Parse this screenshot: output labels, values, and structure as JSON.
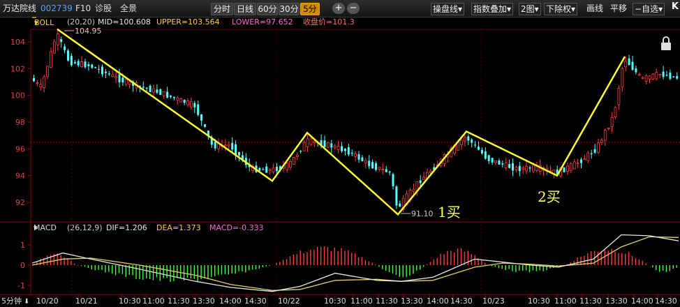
{
  "toolbar": {
    "stock_name": "万达院线",
    "stock_code": "002739",
    "f10": "F10",
    "diagnose": "诊股",
    "full_view": "全景",
    "periods": [
      "分时",
      "日线",
      "60分",
      "30分",
      "5分"
    ],
    "active_period": "5分",
    "zoom_in": "+",
    "zoom_out": "−",
    "menus": [
      "操盘线",
      "指数叠加",
      "2图",
      "下除权",
      "画线",
      "平移",
      "自选"
    ],
    "logo": "K"
  },
  "boll": {
    "name": "BOLL",
    "params": "(20,20)",
    "mid": "MID=100.608",
    "upper": "UPPER=103.564",
    "lower": "LOWER=97.652",
    "close": "收盘价=101.3"
  },
  "macd": {
    "name": "MACD",
    "params": "(26,12,9)",
    "dif": "DIF=1.206",
    "dea": "DEA=1.373",
    "macd": "MACD=-0.333"
  },
  "price_axis": {
    "ticks": [
      "104",
      "102",
      "100",
      "98",
      "96",
      "94",
      "92"
    ]
  },
  "macd_axis": {
    "ticks": [
      "1",
      "0",
      "-1"
    ]
  },
  "time_axis": {
    "period_label": "5分钟",
    "labels": [
      "10/20",
      "10/21",
      "10:30",
      "11:00",
      "11:30",
      "13:30",
      "14:00",
      "14:30",
      "10/22",
      "10:30",
      "11:00",
      "11:30",
      "13:30",
      "14:00",
      "14:30",
      "10/23",
      "10:30",
      "11:00",
      "11:30",
      "13:30",
      "14:00",
      "14:30"
    ]
  },
  "annotations": {
    "high_price": "104.95",
    "low_price": "91.10",
    "buy1": "1买",
    "buy2": "2买"
  },
  "colors": {
    "up": "#ff3b3b",
    "down": "#54ffff",
    "trend_line": "#ffff33",
    "dif_line": "#e6e6e6",
    "dea_line": "#e8d060",
    "macd_up": "#ff3b3b",
    "macd_down": "#3cff3c"
  },
  "chart_data": {
    "type": "candlestick",
    "y_range": [
      90.7,
      105.2
    ],
    "trend_zigzag": [
      104.95,
      93.6,
      97.2,
      91.1,
      97.3,
      94.0,
      102.9
    ],
    "macd_range": [
      -1.45,
      1.75
    ]
  }
}
